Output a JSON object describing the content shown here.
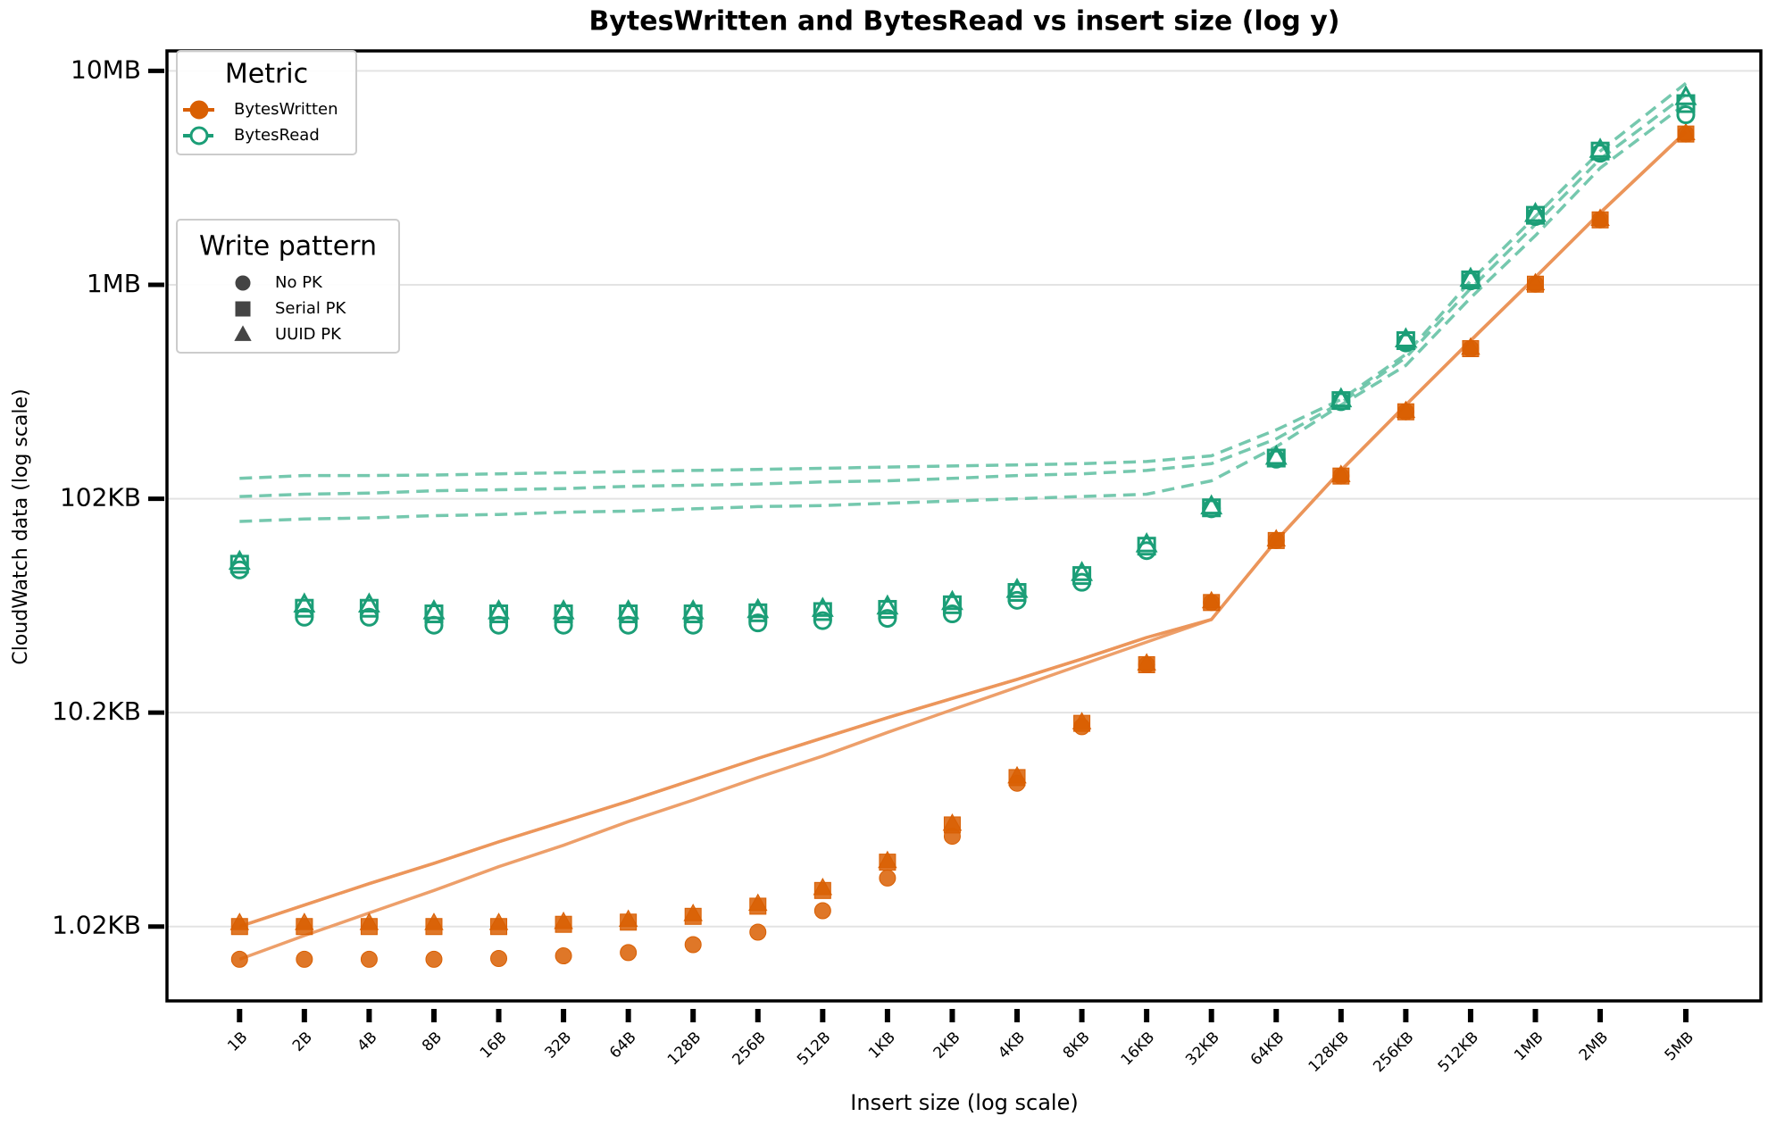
{
  "chart_data": {
    "type": "scatter",
    "title": "BytesWritten and BytesRead vs insert size (log y)",
    "x_label": "Insert size (log scale)",
    "y_label": "CloudWatch data (log scale)",
    "xscale": "log",
    "yscale": "log",
    "grid": true,
    "x": [
      1,
      2,
      4,
      8,
      16,
      32,
      64,
      128,
      256,
      512,
      1024,
      2048,
      4096,
      8192,
      16384,
      32768,
      65536,
      131072,
      262144,
      524288,
      1048576,
      2097152,
      5242880
    ],
    "xlim": [
      0.46,
      11700000
    ],
    "xticks": [
      {
        "value": 1,
        "label": "1B"
      },
      {
        "value": 2,
        "label": "2B"
      },
      {
        "value": 4,
        "label": "4B"
      },
      {
        "value": 8,
        "label": "8B"
      },
      {
        "value": 16,
        "label": "16B"
      },
      {
        "value": 32,
        "label": "32B"
      },
      {
        "value": 64,
        "label": "64B"
      },
      {
        "value": 128,
        "label": "128B"
      },
      {
        "value": 256,
        "label": "256B"
      },
      {
        "value": 512,
        "label": "512B"
      },
      {
        "value": 1024,
        "label": "1KB"
      },
      {
        "value": 2048,
        "label": "2KB"
      },
      {
        "value": 4096,
        "label": "4KB"
      },
      {
        "value": 8192,
        "label": "8KB"
      },
      {
        "value": 16384,
        "label": "16KB"
      },
      {
        "value": 32768,
        "label": "32KB"
      },
      {
        "value": 65536,
        "label": "64KB"
      },
      {
        "value": 131072,
        "label": "128KB"
      },
      {
        "value": 262144,
        "label": "256KB"
      },
      {
        "value": 524288,
        "label": "512KB"
      },
      {
        "value": 1048576,
        "label": "1MB"
      },
      {
        "value": 2097152,
        "label": "2MB"
      },
      {
        "value": 5242880,
        "label": "5MB"
      }
    ],
    "ylim": [
      460,
      12700000
    ],
    "yticks": [
      {
        "value": 1024,
        "label": "1.02KB"
      },
      {
        "value": 10240,
        "label": "10.2KB"
      },
      {
        "value": 102400,
        "label": "102KB"
      },
      {
        "value": 1024000,
        "label": "1MB"
      },
      {
        "value": 10240000,
        "label": "10MB"
      }
    ],
    "legends": [
      {
        "title": "Metric",
        "position": "upper left",
        "entries": [
          {
            "name": "BytesWritten",
            "color": "#d95f02",
            "line_color": "#eb955a",
            "line_style": "solid",
            "filled": true
          },
          {
            "name": "BytesRead",
            "color": "#1b9e77",
            "line_color": "#66c2a5",
            "line_style": "dashed",
            "filled": false
          }
        ]
      },
      {
        "title": "Write pattern",
        "position": "upper left",
        "entries": [
          {
            "name": "No PK",
            "marker": "circle"
          },
          {
            "name": "Serial PK",
            "marker": "square"
          },
          {
            "name": "UUID PK",
            "marker": "triangle"
          }
        ]
      }
    ],
    "series": [
      {
        "metric": 0,
        "pattern": 0,
        "values": [
          720,
          720,
          720,
          720,
          726,
          747,
          774,
          843,
          964,
          1214,
          1726,
          2707,
          4790,
          8800,
          17150,
          33500,
          65300,
          130700,
          261000,
          515000,
          1031000,
          2060000,
          5190000
        ],
        "line_values": [
          720,
          929,
          1185,
          1511,
          1951,
          2456,
          3170,
          3994,
          5092,
          6414,
          8279,
          10560,
          13460,
          17160,
          21890,
          27910,
          65300,
          138800,
          280700,
          561500,
          1111000,
          2224000,
          5314000
        ]
      },
      {
        "metric": 0,
        "pattern": 1,
        "values": [
          1024,
          1024,
          1024,
          1024,
          1024,
          1049,
          1074,
          1143,
          1275,
          1510,
          2048,
          3057,
          5090,
          9125,
          17150,
          33500,
          65300,
          130700,
          261000,
          515000,
          1031000,
          2060000,
          5190000
        ],
        "line_values": [
          1024,
          1290,
          1625,
          2022,
          2548,
          3170,
          3946,
          4970,
          6260,
          7790,
          9695,
          11920,
          14650,
          18240,
          22980,
          27910,
          65300,
          138800,
          280700,
          561500,
          1111000,
          2224000,
          5314000
        ]
      },
      {
        "metric": 0,
        "pattern": 2,
        "values": [
          1062,
          1062,
          1062,
          1062,
          1062,
          1074,
          1100,
          1170,
          1306,
          1547,
          2070,
          3090,
          5150,
          9220,
          17360,
          33900,
          66000,
          132000,
          263000,
          520000,
          1040000,
          2080000,
          5230000
        ],
        "line_values": [
          1024,
          1290,
          1625,
          2022,
          2548,
          3170,
          3946,
          4970,
          6260,
          7790,
          9695,
          11920,
          14650,
          18240,
          22980,
          27910,
          65300,
          138800,
          280700,
          561500,
          1111000,
          2224000,
          5314000
        ]
      },
      {
        "metric": 1,
        "pattern": 0,
        "values": [
          47600,
          28600,
          28600,
          26250,
          26250,
          26250,
          26250,
          26250,
          26900,
          27560,
          28250,
          29650,
          34300,
          41650,
          58550,
          91850,
          156700,
          291000,
          547500,
          1068000,
          2135000,
          4220000,
          6387000
        ],
        "line_values": [
          80200,
          82300,
          83300,
          85400,
          86400,
          88500,
          89600,
          91850,
          94100,
          95200,
          97600,
          99900,
          102400,
          104900,
          107500,
          124200,
          179200,
          280700,
          429900,
          890000,
          1739000,
          3600000,
          7200000
        ]
      },
      {
        "metric": 1,
        "pattern": 1,
        "values": [
          50600,
          31500,
          31500,
          29650,
          29650,
          29650,
          29650,
          29650,
          30000,
          30400,
          31130,
          32700,
          37350,
          44800,
          61450,
          92850,
          158600,
          294600,
          561500,
          1080000,
          2164000,
          4320000,
          7200000
        ],
        "line_values": [
          104900,
          107500,
          108800,
          111500,
          112800,
          114200,
          117000,
          118400,
          120000,
          122800,
          124200,
          127400,
          131400,
          133800,
          138800,
          149400,
          195100,
          287900,
          468000,
          982000,
          1960000,
          3966000,
          7931000
        ]
      },
      {
        "metric": 1,
        "pattern": 2,
        "values": [
          51800,
          32700,
          32700,
          30400,
          30400,
          30400,
          30400,
          30400,
          30800,
          31200,
          32000,
          33600,
          38300,
          45900,
          62500,
          94000,
          160500,
          298000,
          568000,
          1090000,
          2190000,
          4370000,
          7700000
        ],
        "line_values": [
          127400,
          131400,
          131400,
          132200,
          133800,
          135400,
          137100,
          138800,
          140400,
          142100,
          144000,
          145600,
          147400,
          149400,
          152900,
          162500,
          214900,
          298000,
          484400,
          1068000,
          2135000,
          4321000,
          8960000
        ]
      }
    ]
  }
}
